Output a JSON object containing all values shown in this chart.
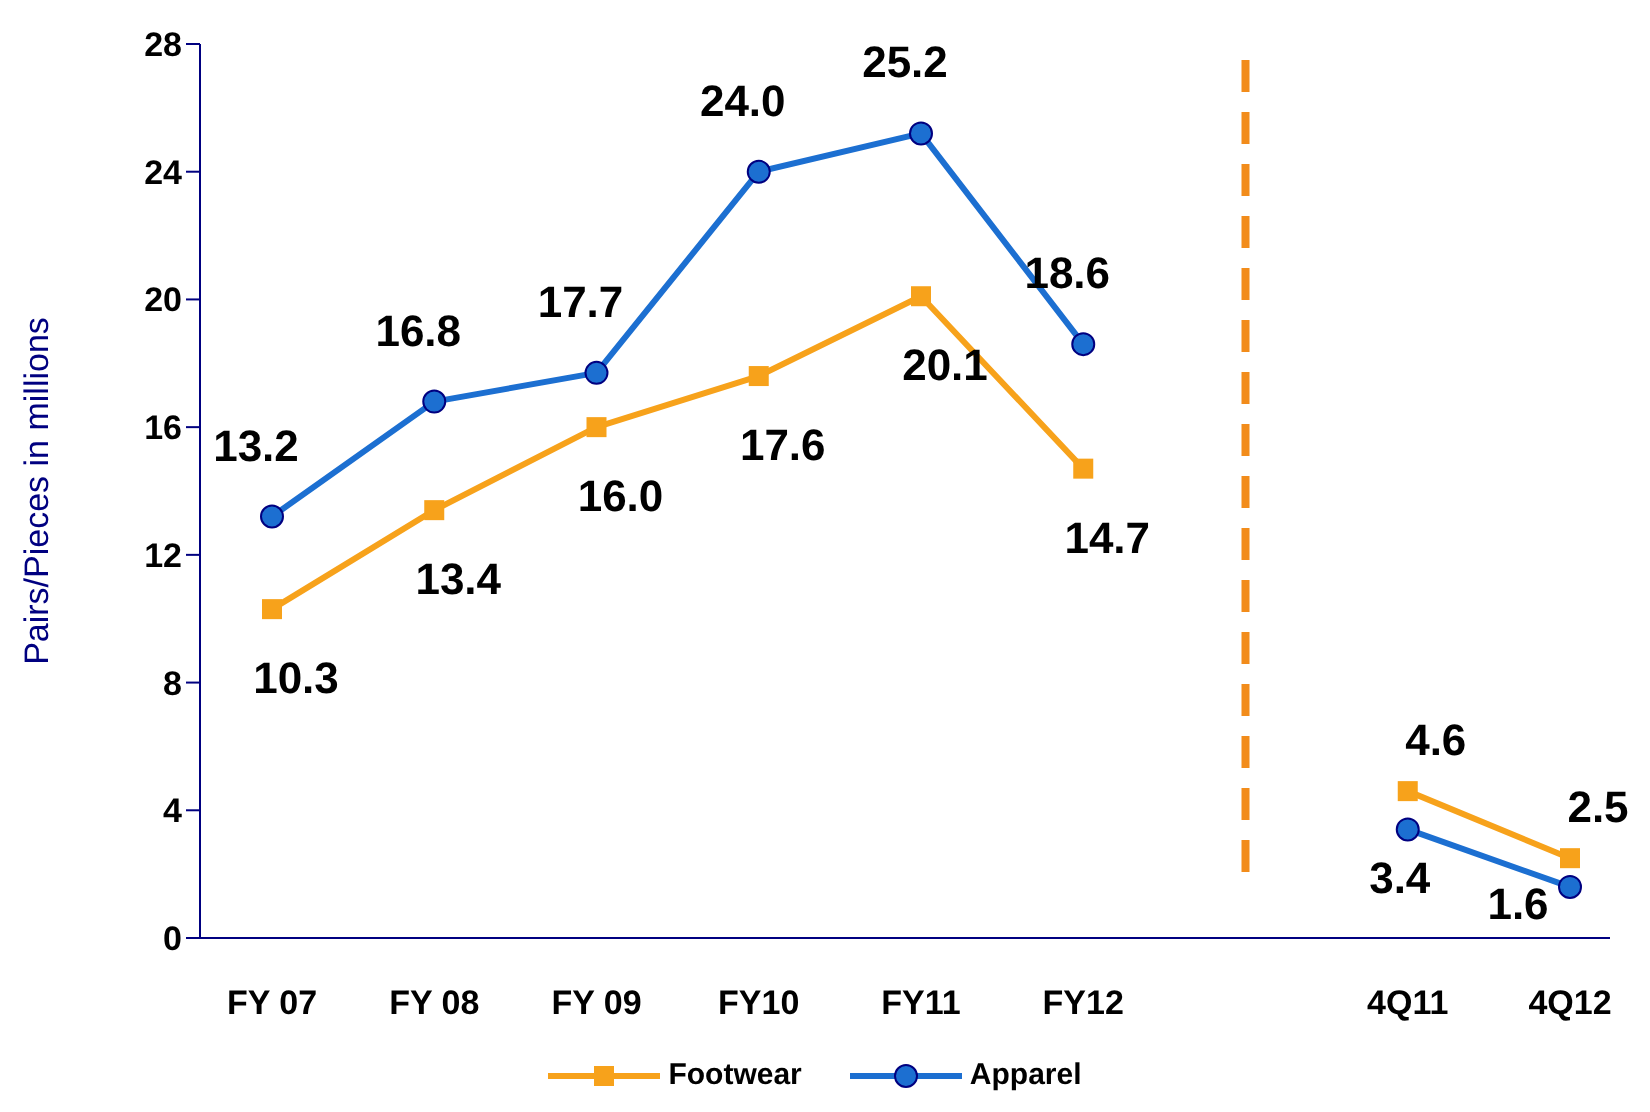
{
  "chart_data": {
    "type": "line",
    "ylabel": "Pairs/Pieces in millions",
    "categories": [
      "FY 07",
      "FY 08",
      "FY 09",
      "FY10",
      "FY11",
      "FY12",
      null,
      "4Q11",
      "4Q12"
    ],
    "series": [
      {
        "name": "Footwear",
        "color": "#f7a21b",
        "marker": "square",
        "values": [
          10.3,
          13.4,
          16.0,
          17.6,
          20.1,
          14.7,
          null,
          4.6,
          2.5
        ],
        "value_labels": [
          "10.3",
          "13.4",
          "16.0",
          "17.6",
          "20.1",
          "14.7",
          null,
          "4.6",
          "2.5"
        ]
      },
      {
        "name": "Apparel",
        "color": "#1c6fd1",
        "marker": "circle",
        "values": [
          13.2,
          16.8,
          17.7,
          24.0,
          25.2,
          18.6,
          null,
          3.4,
          1.6
        ],
        "value_labels": [
          "13.2",
          "16.8",
          "17.7",
          "24.0",
          "25.2",
          "18.6",
          null,
          "3.4",
          "1.6"
        ]
      }
    ],
    "ylim": [
      0,
      28
    ],
    "yticks": [
      0,
      4,
      8,
      12,
      16,
      20,
      24,
      28
    ],
    "legend": "bottom"
  }
}
